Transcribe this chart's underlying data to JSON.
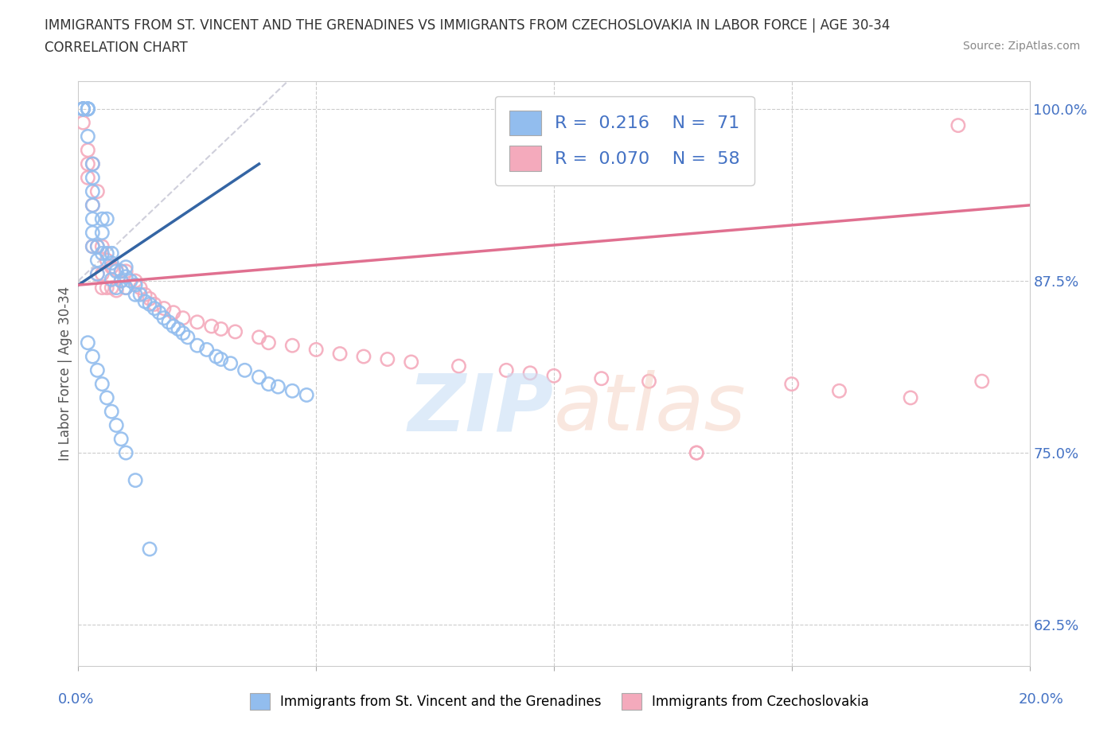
{
  "title_line1": "IMMIGRANTS FROM ST. VINCENT AND THE GRENADINES VS IMMIGRANTS FROM CZECHOSLOVAKIA IN LABOR FORCE | AGE 30-34",
  "title_line2": "CORRELATION CHART",
  "source": "Source: ZipAtlas.com",
  "ylabel": "In Labor Force | Age 30-34",
  "legend_blue_r": "0.216",
  "legend_blue_n": "71",
  "legend_pink_r": "0.070",
  "legend_pink_n": "58",
  "legend_label_blue": "Immigrants from St. Vincent and the Grenadines",
  "legend_label_pink": "Immigrants from Czechoslovakia",
  "blue_color": "#92BDEE",
  "pink_color": "#F4AABC",
  "trendline_blue_color": "#3465A4",
  "trendline_pink_color": "#E07090",
  "diag_line_color": "#AAAACC",
  "xlim": [
    0.0,
    0.2
  ],
  "ylim": [
    0.595,
    1.02
  ],
  "y_ticks": [
    0.625,
    0.75,
    0.875,
    1.0
  ],
  "x_ticks": [
    0.0,
    0.05,
    0.1,
    0.15,
    0.2
  ],
  "blue_x": [
    0.001,
    0.001,
    0.001,
    0.001,
    0.001,
    0.002,
    0.002,
    0.002,
    0.002,
    0.002,
    0.003,
    0.003,
    0.003,
    0.003,
    0.003,
    0.003,
    0.003,
    0.004,
    0.004,
    0.004,
    0.005,
    0.005,
    0.005,
    0.006,
    0.006,
    0.007,
    0.007,
    0.007,
    0.008,
    0.008,
    0.009,
    0.009,
    0.01,
    0.01,
    0.01,
    0.011,
    0.012,
    0.012,
    0.013,
    0.014,
    0.015,
    0.016,
    0.017,
    0.018,
    0.019,
    0.02,
    0.021,
    0.022,
    0.023,
    0.025,
    0.027,
    0.029,
    0.03,
    0.032,
    0.035,
    0.038,
    0.04,
    0.042,
    0.045,
    0.048,
    0.002,
    0.003,
    0.004,
    0.005,
    0.006,
    0.007,
    0.008,
    0.009,
    0.01,
    0.012,
    0.015
  ],
  "blue_y": [
    1.0,
    1.0,
    1.0,
    1.0,
    1.0,
    1.0,
    1.0,
    1.0,
    1.0,
    0.98,
    0.96,
    0.95,
    0.94,
    0.93,
    0.92,
    0.91,
    0.9,
    0.9,
    0.89,
    0.88,
    0.92,
    0.91,
    0.895,
    0.92,
    0.895,
    0.895,
    0.888,
    0.876,
    0.882,
    0.87,
    0.882,
    0.875,
    0.885,
    0.878,
    0.87,
    0.875,
    0.872,
    0.865,
    0.865,
    0.86,
    0.858,
    0.855,
    0.852,
    0.848,
    0.845,
    0.842,
    0.84,
    0.837,
    0.834,
    0.828,
    0.825,
    0.82,
    0.818,
    0.815,
    0.81,
    0.805,
    0.8,
    0.798,
    0.795,
    0.792,
    0.83,
    0.82,
    0.81,
    0.8,
    0.79,
    0.78,
    0.77,
    0.76,
    0.75,
    0.73,
    0.68
  ],
  "pink_x": [
    0.001,
    0.001,
    0.001,
    0.002,
    0.002,
    0.002,
    0.003,
    0.003,
    0.003,
    0.004,
    0.004,
    0.004,
    0.005,
    0.005,
    0.005,
    0.006,
    0.006,
    0.007,
    0.007,
    0.008,
    0.008,
    0.009,
    0.009,
    0.01,
    0.01,
    0.012,
    0.013,
    0.014,
    0.015,
    0.016,
    0.018,
    0.02,
    0.022,
    0.025,
    0.028,
    0.03,
    0.033,
    0.038,
    0.04,
    0.045,
    0.05,
    0.055,
    0.06,
    0.065,
    0.07,
    0.08,
    0.09,
    0.095,
    0.1,
    0.11,
    0.12,
    0.13,
    0.13,
    0.15,
    0.16,
    0.175,
    0.185,
    0.19
  ],
  "pink_y": [
    1.0,
    1.0,
    0.99,
    0.97,
    0.96,
    0.95,
    0.96,
    0.93,
    0.9,
    0.94,
    0.9,
    0.88,
    0.9,
    0.88,
    0.87,
    0.89,
    0.87,
    0.885,
    0.87,
    0.883,
    0.868,
    0.882,
    0.875,
    0.882,
    0.87,
    0.875,
    0.87,
    0.865,
    0.862,
    0.858,
    0.855,
    0.852,
    0.848,
    0.845,
    0.842,
    0.84,
    0.838,
    0.834,
    0.83,
    0.828,
    0.825,
    0.822,
    0.82,
    0.818,
    0.816,
    0.813,
    0.81,
    0.808,
    0.806,
    0.804,
    0.802,
    0.75,
    0.75,
    0.8,
    0.795,
    0.79,
    0.988,
    0.802
  ]
}
